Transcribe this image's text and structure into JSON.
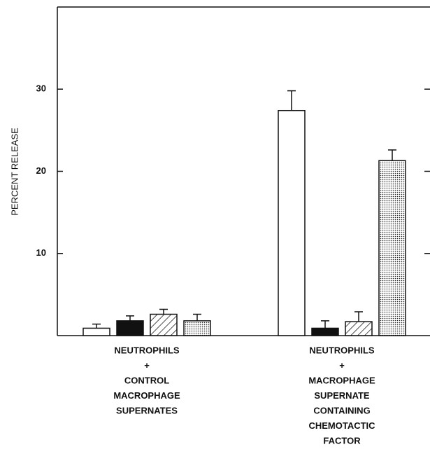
{
  "chart_data": {
    "type": "bar",
    "y_label": "PERCENT RELEASE",
    "categories": [
      [
        "NEUTROPHILS",
        "+",
        "CONTROL",
        "MACROPHAGE",
        "SUPERNATES"
      ],
      [
        "NEUTROPHILS",
        "+",
        "MACROPHAGE",
        "SUPERNATE",
        "CONTAINING",
        "CHEMOTACTIC",
        "FACTOR"
      ]
    ],
    "series": [
      {
        "fill": "white",
        "values": [
          0.9,
          27.4
        ],
        "errors": [
          0.5,
          2.4
        ]
      },
      {
        "fill": "black",
        "values": [
          1.8,
          0.9
        ],
        "errors": [
          0.6,
          0.9
        ]
      },
      {
        "fill": "hatch",
        "values": [
          2.6,
          1.7
        ],
        "errors": [
          0.6,
          1.2
        ]
      },
      {
        "fill": "dots",
        "values": [
          1.8,
          21.3
        ],
        "errors": [
          0.8,
          1.3
        ]
      }
    ],
    "ylim": [
      0,
      40
    ],
    "yticks": [
      10,
      20,
      30
    ]
  }
}
